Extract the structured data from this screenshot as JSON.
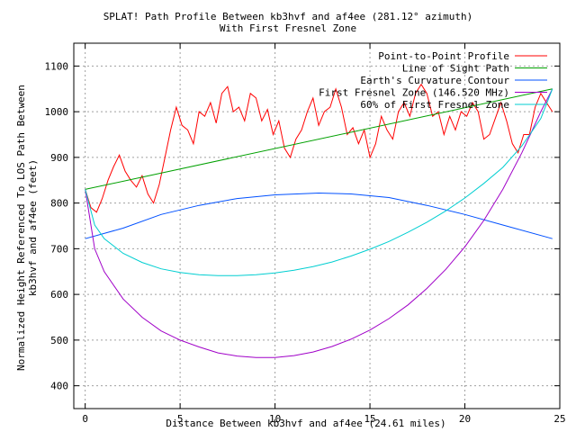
{
  "chart_data": {
    "type": "line",
    "title": "SPLAT! Path Profile Between kb3hvf and af4ee (281.12° azimuth)",
    "subtitle": "With First Fresnel Zone",
    "xlabel": "Distance Between kb3hvf and af4ee (24.61 miles)",
    "ylabel": [
      "Normalized Height Referenced To LOS Path Between",
      "kb3hvf and af4ee (feet)"
    ],
    "xlim": [
      -0.6,
      25
    ],
    "ylim": [
      350,
      1150
    ],
    "xticks": [
      0,
      5,
      10,
      15,
      20,
      25
    ],
    "yticks": [
      400,
      500,
      600,
      700,
      800,
      900,
      1000,
      1100
    ],
    "grid": true,
    "legend_position": "top-right",
    "series": [
      {
        "name": "Point-to-Point Profile",
        "color": "#ff0000",
        "x": [
          0,
          0.3,
          0.6,
          0.9,
          1.2,
          1.5,
          1.8,
          2.1,
          2.4,
          2.7,
          3.0,
          3.3,
          3.6,
          3.9,
          4.2,
          4.5,
          4.8,
          5.1,
          5.4,
          5.7,
          6.0,
          6.3,
          6.6,
          6.9,
          7.2,
          7.5,
          7.8,
          8.1,
          8.4,
          8.7,
          9.0,
          9.3,
          9.6,
          9.9,
          10.2,
          10.5,
          10.8,
          11.1,
          11.4,
          11.7,
          12.0,
          12.3,
          12.6,
          12.9,
          13.2,
          13.5,
          13.8,
          14.1,
          14.4,
          14.7,
          15.0,
          15.3,
          15.6,
          15.9,
          16.2,
          16.5,
          16.8,
          17.1,
          17.4,
          17.7,
          18.0,
          18.3,
          18.6,
          18.9,
          19.2,
          19.5,
          19.8,
          20.1,
          20.4,
          20.7,
          21.0,
          21.3,
          21.6,
          21.9,
          22.2,
          22.5,
          22.8,
          23.1,
          23.4,
          23.7,
          24.0,
          24.3,
          24.61
        ],
        "y": [
          830,
          790,
          780,
          810,
          850,
          880,
          905,
          870,
          850,
          835,
          860,
          820,
          800,
          840,
          900,
          960,
          1010,
          970,
          960,
          930,
          1000,
          990,
          1020,
          975,
          1040,
          1055,
          1000,
          1010,
          980,
          1040,
          1030,
          980,
          1005,
          950,
          980,
          920,
          900,
          940,
          960,
          1000,
          1030,
          970,
          1000,
          1010,
          1050,
          1010,
          950,
          965,
          930,
          960,
          900,
          930,
          990,
          960,
          940,
          1000,
          1020,
          990,
          1040,
          1060,
          1040,
          990,
          1000,
          950,
          990,
          960,
          1000,
          990,
          1020,
          1000,
          940,
          950,
          985,
          1020,
          980,
          930,
          910,
          950,
          950,
          1010,
          1040,
          1020,
          1000
        ]
      },
      {
        "name": "Line of Sight Path",
        "color": "#00a000",
        "x": [
          0,
          24.61
        ],
        "y": [
          830,
          1050
        ]
      },
      {
        "name": "Earth's Curvature Contour",
        "color": "#0050ff",
        "x": [
          0,
          2,
          4,
          6,
          8,
          10,
          12.3,
          14,
          16,
          18,
          20,
          22,
          24.61
        ],
        "y": [
          722,
          745,
          775,
          795,
          810,
          818,
          822,
          820,
          812,
          795,
          775,
          752,
          722
        ]
      },
      {
        "name": "First Fresnel Zone (146.520 MHz)",
        "color": "#a000c8",
        "x": [
          0,
          0.5,
          1,
          2,
          3,
          4,
          5,
          6,
          7,
          8,
          9,
          10,
          11,
          12,
          13,
          14,
          15,
          16,
          17,
          18,
          19,
          20,
          21,
          22,
          23,
          23.5,
          24,
          24.61
        ],
        "y": [
          830,
          700,
          650,
          590,
          550,
          520,
          500,
          485,
          472,
          465,
          462,
          462,
          466,
          474,
          486,
          502,
          522,
          547,
          577,
          613,
          655,
          704,
          762,
          830,
          910,
          955,
          1000,
          1050
        ]
      },
      {
        "name": "60% of First Fresnel Zone",
        "color": "#00ced1",
        "x": [
          0,
          0.5,
          1,
          2,
          3,
          4,
          5,
          6,
          7,
          8,
          9,
          10,
          11,
          12,
          13,
          14,
          15,
          16,
          17,
          18,
          19,
          20,
          21,
          22,
          23,
          23.5,
          24,
          24.61
        ],
        "y": [
          830,
          752,
          722,
          690,
          670,
          656,
          648,
          643,
          641,
          641,
          643,
          647,
          653,
          661,
          671,
          684,
          699,
          716,
          736,
          758,
          783,
          811,
          843,
          878,
          925,
          955,
          985,
          1050
        ]
      }
    ]
  }
}
